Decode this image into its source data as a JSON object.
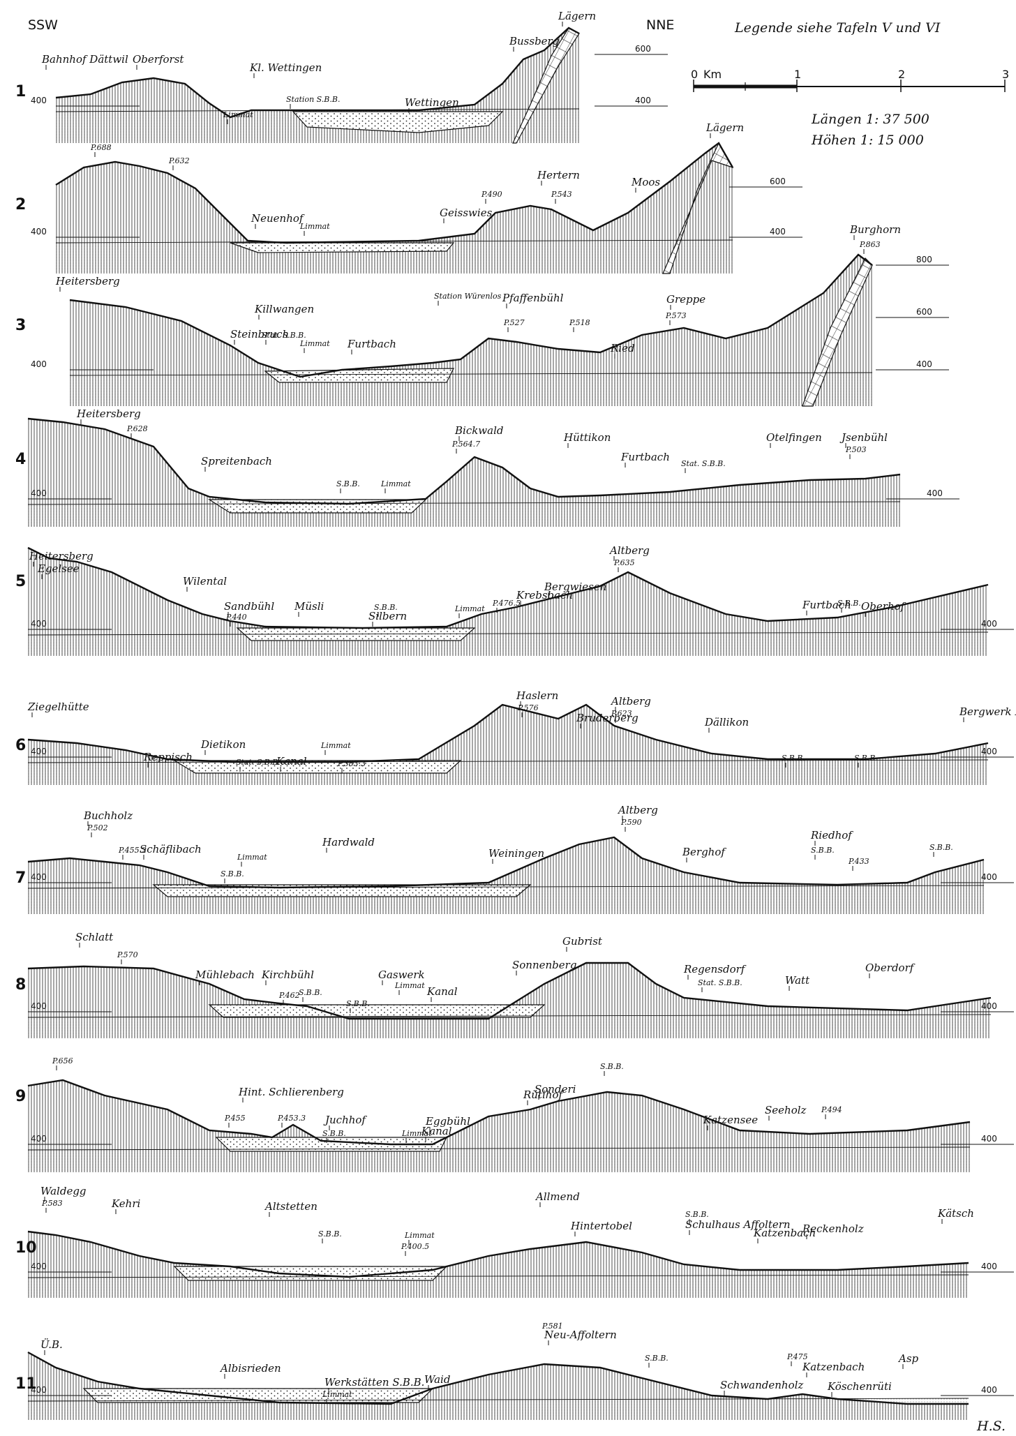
{
  "header": {
    "left_dir": "SSW",
    "right_dir": "NNE",
    "legend_note": "Legende siehe Tafeln V und VI",
    "scale_zero": "0",
    "scale_unit": "Km",
    "scale_ticks": [
      "1",
      "2",
      "3"
    ],
    "scale_lengths": "Längen 1: 37 500",
    "scale_heights": "Höhen 1: 15 000"
  },
  "signature": "H.S.",
  "profiles": [
    {
      "number": "1",
      "labels": [
        "Bahnhof Dättwil",
        "Oberforst",
        "Kl. Wettingen",
        "Limmat",
        "Station S.B.B.",
        "Wettingen",
        "Bussberg",
        "Lägern"
      ],
      "elevations": [
        "400",
        "600",
        "400"
      ]
    },
    {
      "number": "2",
      "labels": [
        "P.688",
        "P.632",
        "Neuenhof",
        "Limmat",
        "Geisswies",
        "P.490",
        "Hertern",
        "P.543",
        "Moos",
        "Lägern"
      ],
      "elevations": [
        "400",
        "600",
        "400"
      ]
    },
    {
      "number": "3",
      "labels": [
        "Heitersberg",
        "Steinbruch",
        "Killwangen",
        "Stat. S.B.B.",
        "Limmat",
        "Furtbach",
        "Station Würenlos",
        "Pfaffenbühl",
        "P.527",
        "P.518",
        "Ried",
        "Greppe",
        "P.573",
        "Burghorn",
        "P.863"
      ],
      "elevations": [
        "400",
        "800",
        "600",
        "400"
      ]
    },
    {
      "number": "4",
      "labels": [
        "Heitersberg",
        "P.628",
        "Spreitenbach",
        "S.B.B.",
        "Limmat",
        "Bickwald",
        "P.564.7",
        "Hüttikon",
        "Furtbach",
        "Stat. S.B.B.",
        "Otelfingen",
        "Jsenbühl",
        "P.503"
      ],
      "elevations": [
        "400",
        "400"
      ]
    },
    {
      "number": "5",
      "labels": [
        "Heitersberg",
        "Egelsee",
        "Wilental",
        "Sandbühl",
        "P.440",
        "Müsli",
        "S.B.B.",
        "Silbern",
        "Limmat",
        "P.476.5",
        "Krebsbach",
        "Bergwiesen",
        "Altberg",
        "P.635",
        "Furtbach",
        "S.B.B.",
        "Oberhof"
      ],
      "elevations": [
        "400",
        "400"
      ]
    },
    {
      "number": "6",
      "labels": [
        "Ziegelhütte",
        "Reppisch",
        "Dietikon",
        "Stat. S.B.B.",
        "Kanal",
        "Limmat",
        "P.383.3",
        "Haslern",
        "P.576",
        "Bruderberg",
        "Altberg",
        "P.623",
        "Dällikon",
        "S.B.B.",
        "S.B.B.",
        "Bergwerk Krähstel"
      ],
      "elevations": [
        "400",
        "400"
      ]
    },
    {
      "number": "7",
      "labels": [
        "Buchholz",
        "P.502",
        "P.455.2",
        "Schäflibach",
        "Limmat",
        "S.B.B.",
        "Hardwald",
        "Weiningen",
        "Altberg",
        "P.590",
        "Berghof",
        "Riedhof",
        "S.B.B.",
        "P.433",
        "S.B.B."
      ],
      "elevations": [
        "400",
        "400"
      ]
    },
    {
      "number": "8",
      "labels": [
        "Schlatt",
        "P.570",
        "Mühlebach",
        "Kirchbühl",
        "P.462",
        "S.B.B.",
        "S.B.B.",
        "Gaswerk",
        "Limmat",
        "Kanal",
        "Sonnenberg",
        "Gubrist",
        "Regensdorf",
        "Stat. S.B.B.",
        "Watt",
        "Oberdorf"
      ],
      "elevations": [
        "400",
        "400"
      ]
    },
    {
      "number": "9",
      "labels": [
        "P.656",
        "Hint. Schlierenberg",
        "P.455",
        "P.453.3",
        "Juchhof",
        "S.B.B.",
        "Limmat",
        "Kanal",
        "Eggbühl",
        "Rütihof",
        "Sonderi",
        "S.B.B.",
        "Katzensee",
        "Seeholz",
        "P.494"
      ],
      "elevations": [
        "400",
        "400"
      ]
    },
    {
      "number": "10",
      "labels": [
        "Waldegg",
        "P.583",
        "Kehri",
        "Altstetten",
        "S.B.B.",
        "Limmat",
        "P.400.5",
        "Allmend",
        "Hintertobel",
        "S.B.B.",
        "Schulhaus Affoltern",
        "Katzenbach",
        "Reckenholz",
        "Kätsch"
      ],
      "elevations": [
        "400",
        "400"
      ]
    },
    {
      "number": "11",
      "labels": [
        "Ü.B.",
        "Albisrieden",
        "Werkstätten S.B.B.",
        "Limmat",
        "Waid",
        "P.581",
        "Neu-Affoltern",
        "S.B.B.",
        "Schwandenholz",
        "P.475",
        "Katzenbach",
        "Köschenrüti",
        "Asp"
      ],
      "elevations": [
        "400",
        "400"
      ]
    }
  ],
  "colors": {
    "ink": "#111111",
    "paper": "#ffffff"
  }
}
